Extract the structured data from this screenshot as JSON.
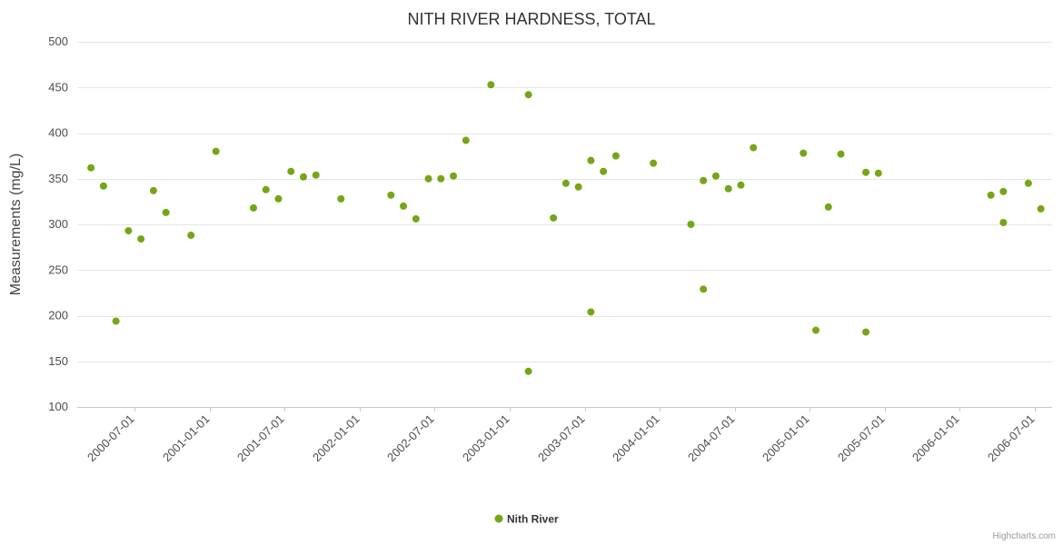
{
  "chart_data": {
    "type": "scatter",
    "title": "NITH RIVER HARDNESS, TOTAL",
    "xlabel": "",
    "ylabel": "Measurements (mg/L)",
    "ylim": [
      100,
      500
    ],
    "y_ticks": [
      100,
      150,
      200,
      250,
      300,
      350,
      400,
      450,
      500
    ],
    "x_ticks": [
      "2000-07-01",
      "2001-01-01",
      "2001-07-01",
      "2002-01-01",
      "2002-07-01",
      "2003-01-01",
      "2003-07-01",
      "2004-01-01",
      "2004-07-01",
      "2005-01-01",
      "2005-07-01",
      "2006-01-01",
      "2006-07-01"
    ],
    "x_domain_months": [
      1.4,
      79.4
    ],
    "grid": "horizontal",
    "legend_position": "bottom-center",
    "series": [
      {
        "name": "Nith River",
        "color": "#74a617",
        "marker": "circle",
        "data": [
          [
            "2000-03",
            362
          ],
          [
            "2000-04",
            342
          ],
          [
            "2000-05",
            194
          ],
          [
            "2000-06",
            293
          ],
          [
            "2000-07",
            284
          ],
          [
            "2000-08",
            337
          ],
          [
            "2000-09",
            313
          ],
          [
            "2000-11",
            288
          ],
          [
            "2001-01",
            380
          ],
          [
            "2001-04",
            318
          ],
          [
            "2001-05",
            338
          ],
          [
            "2001-06",
            328
          ],
          [
            "2001-07",
            358
          ],
          [
            "2001-08",
            352
          ],
          [
            "2001-09",
            354
          ],
          [
            "2001-11",
            328
          ],
          [
            "2002-03",
            332
          ],
          [
            "2002-04",
            320
          ],
          [
            "2002-05",
            306
          ],
          [
            "2002-06",
            350
          ],
          [
            "2002-07",
            350
          ],
          [
            "2002-08",
            353
          ],
          [
            "2002-09",
            392
          ],
          [
            "2002-11",
            453
          ],
          [
            "2003-02",
            442
          ],
          [
            "2003-02",
            139
          ],
          [
            "2003-04",
            307
          ],
          [
            "2003-05",
            345
          ],
          [
            "2003-06",
            341
          ],
          [
            "2003-07",
            204
          ],
          [
            "2003-07",
            370
          ],
          [
            "2003-08",
            358
          ],
          [
            "2003-09",
            375
          ],
          [
            "2003-12",
            367
          ],
          [
            "2004-03",
            300
          ],
          [
            "2004-04",
            229
          ],
          [
            "2004-04",
            348
          ],
          [
            "2004-05",
            353
          ],
          [
            "2004-06",
            339
          ],
          [
            "2004-07",
            343
          ],
          [
            "2004-08",
            384
          ],
          [
            "2004-12",
            378
          ],
          [
            "2005-01",
            184
          ],
          [
            "2005-02",
            319
          ],
          [
            "2005-03",
            377
          ],
          [
            "2005-05",
            182
          ],
          [
            "2005-05",
            357
          ],
          [
            "2005-06",
            356
          ],
          [
            "2006-03",
            332
          ],
          [
            "2006-04",
            302
          ],
          [
            "2006-04",
            336
          ],
          [
            "2006-06",
            345
          ],
          [
            "2006-07",
            317
          ]
        ]
      }
    ]
  },
  "credits": "Highcharts.com",
  "colors": {
    "marker": "#74a617",
    "grid": "#e6e6e6",
    "axis_line": "#c9c9c9",
    "tick_label": "#4d4d4d",
    "title": "#333333"
  }
}
